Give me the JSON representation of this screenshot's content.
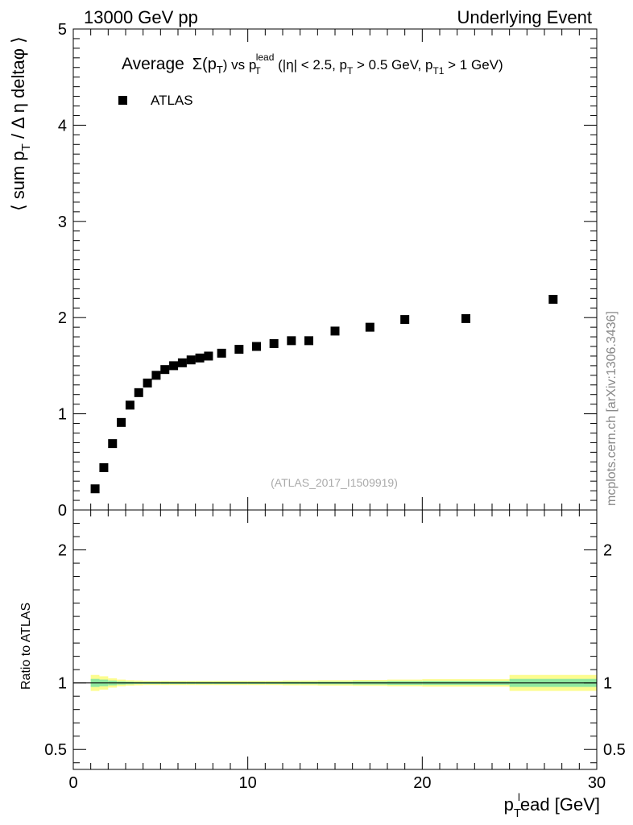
{
  "header": {
    "left": "13000 GeV pp",
    "right": "Underlying Event"
  },
  "side_label": "mcplots.cern.ch [arXiv:1306.3436]",
  "chart_data": [
    {
      "type": "scatter",
      "title": "Average Σ(p_T) vs p_T^lead (|η| < 2.5, p_T > 0.5 GeV, p_T1 > 1 GeV)",
      "title_parts": {
        "a": "Average",
        "b": "Σ(p",
        "b_sub": "T",
        "c": ") vs p",
        "c_sub": "T",
        "c_sup": "lead",
        "d": " (|η| < 2.5, p",
        "d_sub": "T",
        "e": " > 0.5 GeV, p",
        "e_sub": "T1",
        "f": " > 1 GeV)"
      },
      "ylabel": "⟨ sum p_T / Δ η deltaφ ⟩",
      "ylabel_parts": {
        "a": "⟨ sum p",
        "sub": "T",
        "b": " / Δ η deltaφ ⟩"
      },
      "xlim": [
        0,
        30
      ],
      "ylim": [
        0,
        5
      ],
      "yticks": [
        "0",
        "1",
        "2",
        "3",
        "4",
        "5"
      ],
      "legend_position": "top-left",
      "watermark": "(ATLAS_2017_I1509919)",
      "series": [
        {
          "name": "ATLAS",
          "marker": "square",
          "color": "#000000",
          "x": [
            1.25,
            1.75,
            2.25,
            2.75,
            3.25,
            3.75,
            4.25,
            4.75,
            5.25,
            5.75,
            6.25,
            6.75,
            7.25,
            7.75,
            8.5,
            9.5,
            10.5,
            11.5,
            12.5,
            13.5,
            15.0,
            17.0,
            19.0,
            22.5,
            27.5
          ],
          "y": [
            0.22,
            0.44,
            0.69,
            0.91,
            1.09,
            1.22,
            1.32,
            1.4,
            1.46,
            1.5,
            1.53,
            1.56,
            1.58,
            1.6,
            1.63,
            1.67,
            1.7,
            1.73,
            1.76,
            1.76,
            1.86,
            1.9,
            1.98,
            1.99,
            2.19
          ]
        }
      ]
    },
    {
      "type": "area",
      "ylabel": "Ratio to ATLAS",
      "xlabel": "p_T^lead [GeV]",
      "xlabel_parts": {
        "a": "p",
        "sub": "T",
        "sup": "l",
        "b": "ead [GeV]"
      },
      "xlim": [
        0,
        30
      ],
      "ylim": [
        0.35,
        2.3
      ],
      "yticks": [
        "0.5",
        "1",
        "2"
      ],
      "xticks": [
        "0",
        "10",
        "20",
        "30"
      ],
      "reference_line": 1,
      "bands": {
        "x_edges": [
          1,
          1.5,
          2,
          2.5,
          3,
          3.5,
          4,
          4.5,
          5,
          5.5,
          6,
          6.5,
          7,
          7.5,
          8,
          9,
          10,
          11,
          12,
          13,
          14,
          16,
          18,
          20,
          25,
          30
        ],
        "stat": [
          0.03,
          0.025,
          0.018,
          0.012,
          0.01,
          0.008,
          0.008,
          0.008,
          0.008,
          0.008,
          0.008,
          0.008,
          0.008,
          0.008,
          0.008,
          0.008,
          0.008,
          0.008,
          0.009,
          0.009,
          0.01,
          0.012,
          0.014,
          0.015,
          0.03
        ],
        "total": [
          0.06,
          0.05,
          0.035,
          0.025,
          0.02,
          0.018,
          0.016,
          0.016,
          0.016,
          0.016,
          0.016,
          0.016,
          0.016,
          0.016,
          0.016,
          0.016,
          0.016,
          0.016,
          0.018,
          0.018,
          0.02,
          0.022,
          0.025,
          0.028,
          0.06
        ],
        "stat_color": "#8fe8a0",
        "total_color": "#fcfc8f"
      }
    }
  ]
}
